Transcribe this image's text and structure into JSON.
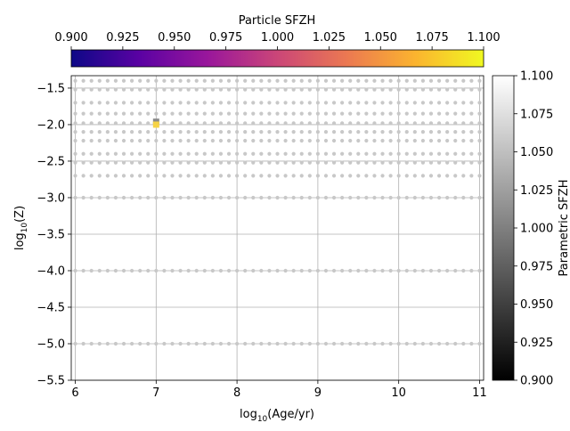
{
  "chart_data": {
    "type": "scatter",
    "xlabel_base": "log",
    "xlabel_sub": "10",
    "xlabel_rest": "(Age/yr)",
    "ylabel_base": "log",
    "ylabel_sub": "10",
    "ylabel_rest": "(Z)",
    "xlim": [
      5.95,
      11.05
    ],
    "ylim": [
      -5.5,
      -1.33
    ],
    "xticks": [
      "6",
      "7",
      "8",
      "9",
      "10",
      "11"
    ],
    "yticks": [
      "−1.5",
      "−2.0",
      "−2.5",
      "−3.0",
      "−3.5",
      "−4.0",
      "−4.5",
      "−5.0",
      "−5.5"
    ],
    "grid": true,
    "grid_points": {
      "x_start": 6.0,
      "x_end": 11.0,
      "x_step": 0.1,
      "y_values": [
        -1.4,
        -1.52,
        -1.7,
        -1.85,
        -1.98,
        -2.1,
        -2.22,
        -2.4,
        -2.52,
        -2.7,
        -3.0,
        -4.0,
        -5.0
      ],
      "color": "#c8c8c8"
    },
    "highlight_points": [
      {
        "x": 7.0,
        "y": -1.96,
        "color": "#8a8a8a",
        "marker": "square"
      },
      {
        "x": 7.0,
        "y": -2.0,
        "color": "#f6d346",
        "marker": "square"
      }
    ],
    "colorbar_top": {
      "label": "Particle SFZH",
      "ticks": [
        "0.900",
        "0.925",
        "0.950",
        "0.975",
        "1.000",
        "1.025",
        "1.050",
        "1.075",
        "1.100"
      ],
      "range": [
        0.9,
        1.1
      ],
      "cmap": "plasma",
      "colors": [
        "#0d0887",
        "#5b02a3",
        "#9a179b",
        "#cb4678",
        "#eb7852",
        "#fbb32f",
        "#f0f921"
      ]
    },
    "colorbar_right": {
      "label": "Parametric SFZH",
      "ticks": [
        "0.900",
        "0.925",
        "0.950",
        "0.975",
        "1.000",
        "1.025",
        "1.050",
        "1.075",
        "1.100"
      ],
      "range": [
        0.9,
        1.1
      ],
      "cmap": "gray",
      "colors": [
        "#000000",
        "#ffffff"
      ]
    }
  }
}
